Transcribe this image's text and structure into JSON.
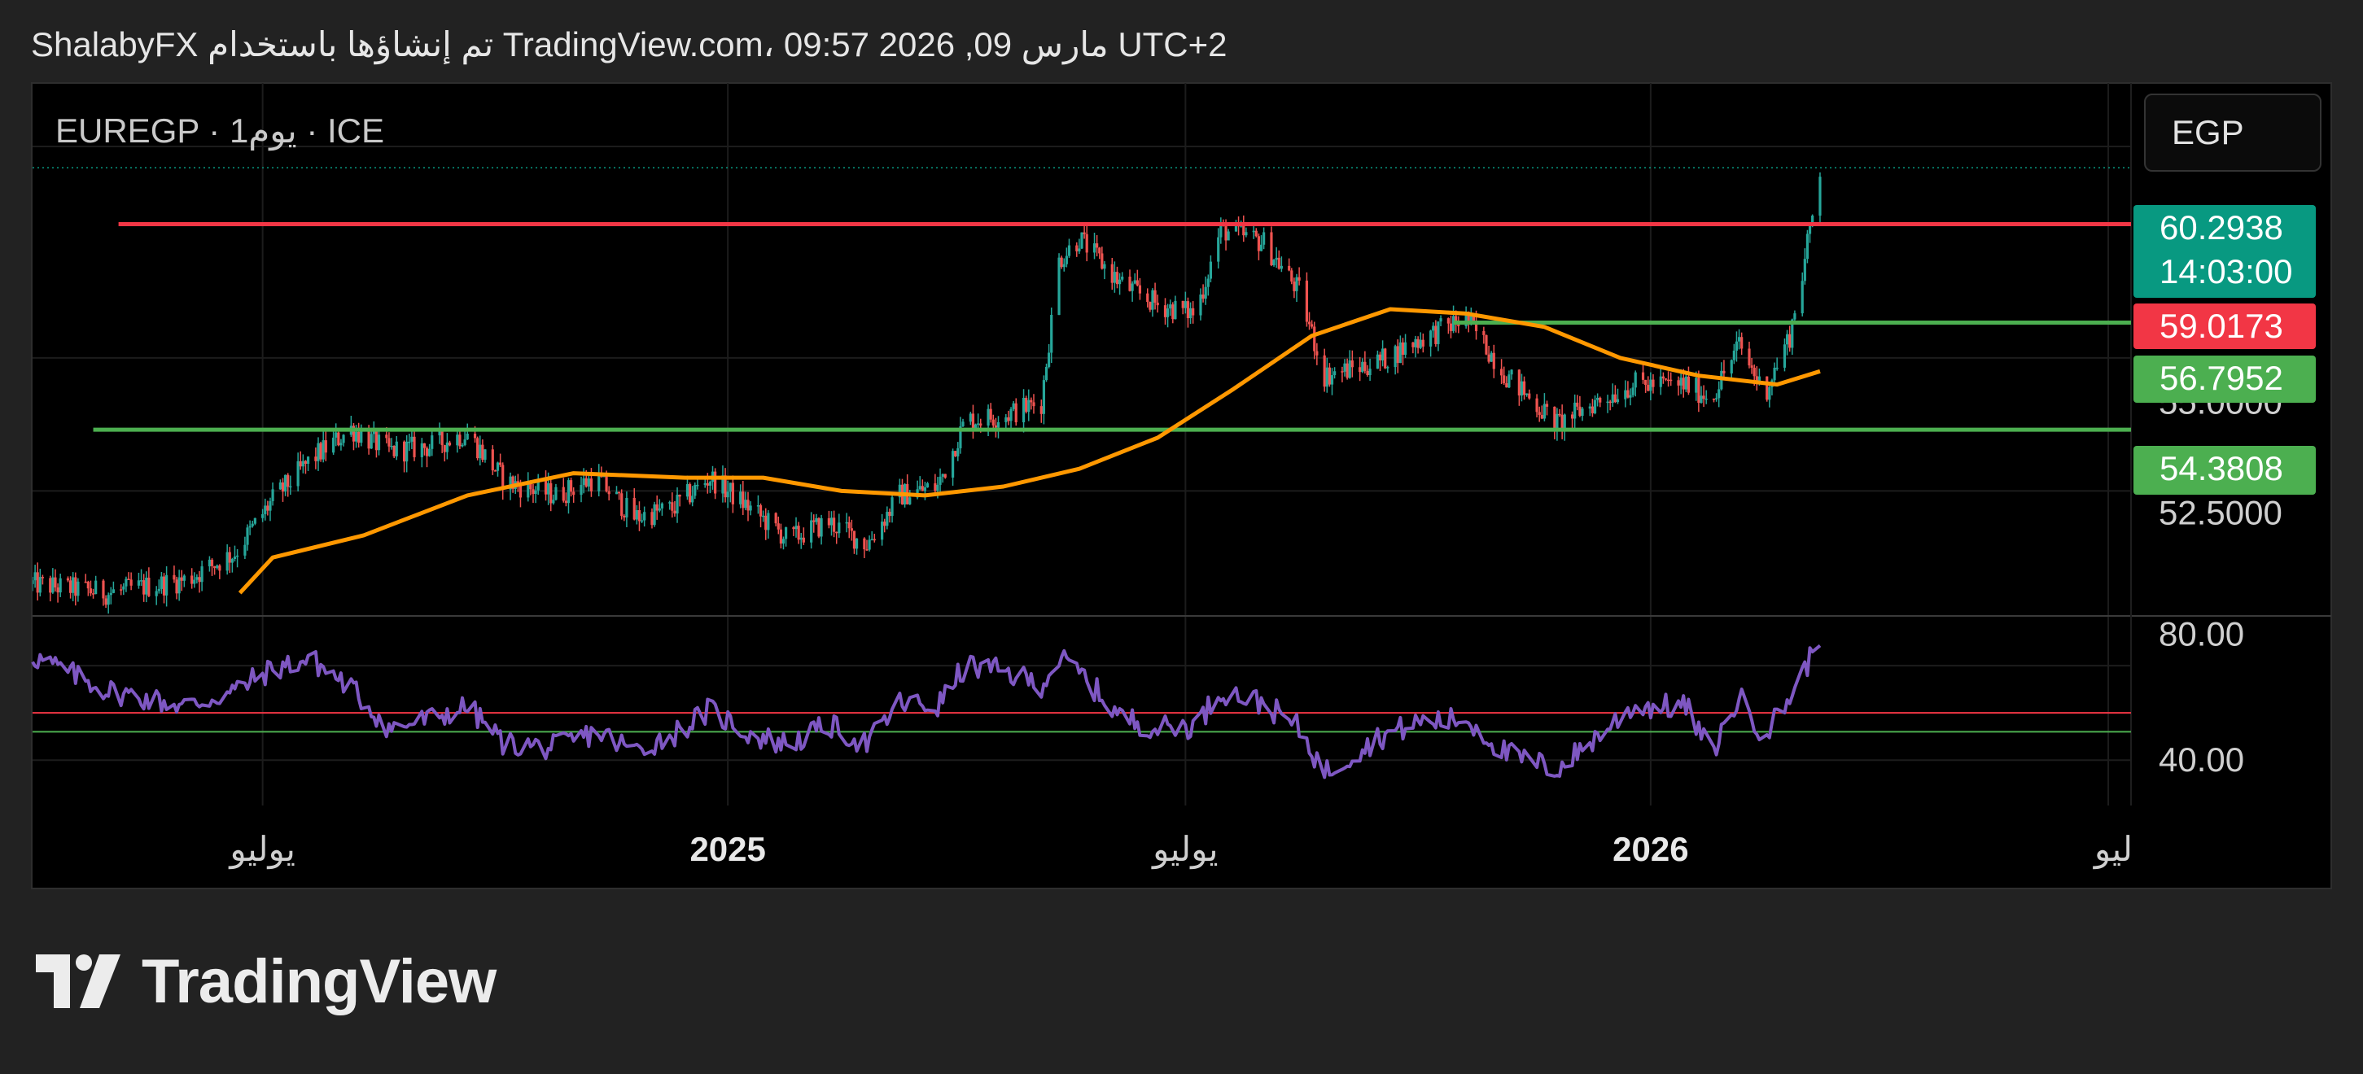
{
  "header": {
    "title": "ShalabyFX تم إنشاؤها باستخدام TradingView.com، 09:57 2026 ,09 مارس UTC+2"
  },
  "symbol": {
    "label": "EUREGP · 1يوم · ICE"
  },
  "currency_button": {
    "label": "EGP"
  },
  "brand": {
    "name": "TradingView"
  },
  "colors": {
    "background": "#222222",
    "chart_bg": "#000000",
    "grid": "#1c1c1c",
    "candle_up": "#26a69a",
    "candle_down": "#ef5350",
    "ma": "#ff9800",
    "rsi": "#7e57c2",
    "resistance": "#f23645",
    "support": "#4caf50",
    "last_price": "#089981"
  },
  "chart_data": [
    {
      "type": "candlestick",
      "title": "EUREGP · 1يوم · ICE",
      "currency": "EGP",
      "x_ticks": [
        "يوليو",
        "2025",
        "يوليو",
        "2026",
        "ليو"
      ],
      "x_range": [
        "2024-04-01",
        "2026-07-10"
      ],
      "y_ticks": [
        "52.5000",
        "55.0000"
      ],
      "ylim": [
        50.2,
        62.2
      ],
      "price_labels": [
        {
          "value": "60.2938",
          "sub": "14:03:00",
          "kind": "last-price",
          "color": "#089981"
        },
        {
          "value": "59.0173",
          "kind": "resistance",
          "color": "#f23645"
        },
        {
          "value": "56.7952",
          "kind": "support",
          "color": "#4caf50"
        },
        {
          "value": "54.3808",
          "kind": "support",
          "color": "#4caf50"
        }
      ],
      "horizontal_lines": [
        {
          "value": 59.0173,
          "from": "2024-05-05",
          "color": "#f23645"
        },
        {
          "value": 56.7952,
          "from": "2025-10-15",
          "color": "#4caf50"
        },
        {
          "value": 54.3808,
          "from": "2024-04-25",
          "color": "#4caf50"
        }
      ],
      "price_path": [
        [
          "2024-04-01",
          50.9
        ],
        [
          "2024-05-01",
          50.7
        ],
        [
          "2024-06-01",
          51.0
        ],
        [
          "2024-06-20",
          51.6
        ],
        [
          "2024-07-05",
          52.8
        ],
        [
          "2024-07-20",
          53.7
        ],
        [
          "2024-08-05",
          54.4
        ],
        [
          "2024-08-20",
          53.9
        ],
        [
          "2024-09-05",
          54.0
        ],
        [
          "2024-09-20",
          54.3
        ],
        [
          "2024-10-05",
          53.2
        ],
        [
          "2024-10-25",
          52.9
        ],
        [
          "2024-11-10",
          53.3
        ],
        [
          "2024-11-25",
          52.4
        ],
        [
          "2024-12-10",
          52.6
        ],
        [
          "2024-12-25",
          53.3
        ],
        [
          "2025-01-10",
          52.6
        ],
        [
          "2025-01-25",
          51.9
        ],
        [
          "2025-02-10",
          52.3
        ],
        [
          "2025-02-25",
          51.8
        ],
        [
          "2025-03-10",
          52.9
        ],
        [
          "2025-03-25",
          53.1
        ],
        [
          "2025-04-05",
          54.6
        ],
        [
          "2025-04-20",
          54.7
        ],
        [
          "2025-05-05",
          55.0
        ],
        [
          "2025-05-12",
          58.2
        ],
        [
          "2025-05-20",
          58.7
        ],
        [
          "2025-06-05",
          57.7
        ],
        [
          "2025-06-20",
          57.2
        ],
        [
          "2025-07-05",
          57.0
        ],
        [
          "2025-07-15",
          58.9
        ],
        [
          "2025-08-01",
          58.6
        ],
        [
          "2025-08-15",
          57.5
        ],
        [
          "2025-08-25",
          55.6
        ],
        [
          "2025-09-15",
          55.9
        ],
        [
          "2025-10-01",
          56.4
        ],
        [
          "2025-10-20",
          56.9
        ],
        [
          "2025-11-05",
          55.6
        ],
        [
          "2025-11-25",
          54.5
        ],
        [
          "2025-12-10",
          55.0
        ],
        [
          "2025-12-25",
          55.4
        ],
        [
          "2026-01-15",
          55.4
        ],
        [
          "2026-01-25",
          55.1
        ],
        [
          "2026-02-05",
          56.3
        ],
        [
          "2026-02-15",
          55.2
        ],
        [
          "2026-02-25",
          56.5
        ],
        [
          "2026-03-03",
          58.2
        ],
        [
          "2026-03-09",
          60.29
        ]
      ],
      "ma": [
        [
          "2024-06-22",
          50.7
        ],
        [
          "2024-07-05",
          51.5
        ],
        [
          "2024-08-10",
          52.0
        ],
        [
          "2024-09-20",
          52.9
        ],
        [
          "2024-11-01",
          53.4
        ],
        [
          "2024-12-15",
          53.3
        ],
        [
          "2025-01-15",
          53.3
        ],
        [
          "2025-02-15",
          53.0
        ],
        [
          "2025-03-20",
          52.9
        ],
        [
          "2025-04-20",
          53.1
        ],
        [
          "2025-05-20",
          53.5
        ],
        [
          "2025-06-20",
          54.2
        ],
        [
          "2025-07-20",
          55.3
        ],
        [
          "2025-08-20",
          56.5
        ],
        [
          "2025-09-20",
          57.1
        ],
        [
          "2025-10-20",
          57.0
        ],
        [
          "2025-11-20",
          56.7
        ],
        [
          "2025-12-20",
          56.0
        ],
        [
          "2026-01-20",
          55.6
        ],
        [
          "2026-02-20",
          55.4
        ],
        [
          "2026-03-09",
          55.7
        ]
      ]
    },
    {
      "type": "line",
      "title": "RSI",
      "y_ticks": [
        "80.00",
        "40.00"
      ],
      "ylim": [
        23,
        85
      ],
      "hlines": [
        {
          "value": 55,
          "color": "#f23645"
        },
        {
          "value": 49,
          "color": "#4caf50"
        }
      ],
      "series": [
        {
          "values": [
            [
              "2024-04-01",
              73
            ],
            [
              "2024-05-01",
              62
            ],
            [
              "2024-06-01",
              57
            ],
            [
              "2024-06-20",
              62
            ],
            [
              "2024-07-05",
              69
            ],
            [
              "2024-07-20",
              72
            ],
            [
              "2024-08-05",
              63
            ],
            [
              "2024-08-20",
              50
            ],
            [
              "2024-09-05",
              53
            ],
            [
              "2024-09-20",
              57
            ],
            [
              "2024-10-05",
              45
            ],
            [
              "2024-10-25",
              44
            ],
            [
              "2024-11-10",
              49
            ],
            [
              "2024-11-25",
              43
            ],
            [
              "2024-12-10",
              48
            ],
            [
              "2024-12-25",
              56
            ],
            [
              "2025-01-10",
              48
            ],
            [
              "2025-01-25",
              45
            ],
            [
              "2025-02-10",
              51
            ],
            [
              "2025-02-25",
              45
            ],
            [
              "2025-03-10",
              58
            ],
            [
              "2025-03-25",
              57
            ],
            [
              "2025-04-05",
              70
            ],
            [
              "2025-04-20",
              68
            ],
            [
              "2025-05-05",
              64
            ],
            [
              "2025-05-12",
              72
            ],
            [
              "2025-05-20",
              68
            ],
            [
              "2025-06-05",
              54
            ],
            [
              "2025-06-20",
              50
            ],
            [
              "2025-07-05",
              51
            ],
            [
              "2025-07-15",
              62
            ],
            [
              "2025-08-01",
              58
            ],
            [
              "2025-08-15",
              50
            ],
            [
              "2025-08-25",
              36
            ],
            [
              "2025-09-15",
              47
            ],
            [
              "2025-10-01",
              52
            ],
            [
              "2025-10-20",
              53
            ],
            [
              "2025-11-05",
              42
            ],
            [
              "2025-11-25",
              37
            ],
            [
              "2025-12-10",
              47
            ],
            [
              "2025-12-25",
              57
            ],
            [
              "2026-01-15",
              57
            ],
            [
              "2026-01-25",
              42
            ],
            [
              "2026-02-05",
              60
            ],
            [
              "2026-02-15",
              48
            ],
            [
              "2026-02-25",
              60
            ],
            [
              "2026-03-03",
              69
            ],
            [
              "2026-03-09",
              78.5
            ]
          ]
        }
      ]
    }
  ]
}
